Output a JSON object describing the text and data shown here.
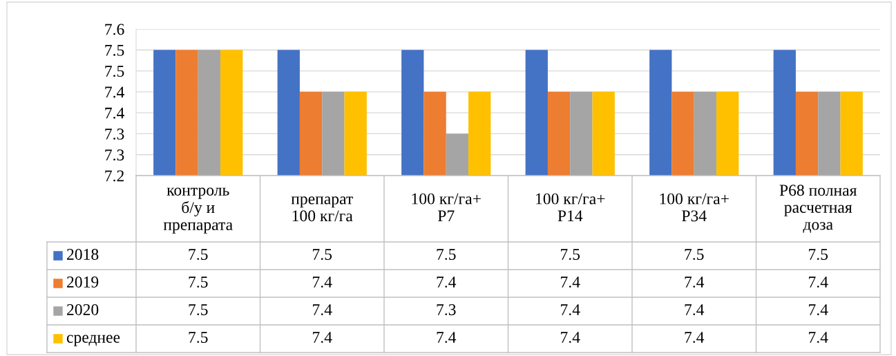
{
  "chart_data": {
    "type": "bar",
    "categories": [
      "контроль\nб/у и\nпрепарата",
      "препарат\n100 кг/га",
      "100 кг/га+\nР7",
      "100 кг/га+\nР14",
      "100 кг/га+\nР34",
      "Р68 полная\nрасчетная\nдоза"
    ],
    "series": [
      {
        "name": "2018",
        "color": "#4472c4",
        "values": [
          7.5,
          7.5,
          7.5,
          7.5,
          7.5,
          7.5
        ]
      },
      {
        "name": "2019",
        "color": "#ed7d31",
        "values": [
          7.5,
          7.4,
          7.4,
          7.4,
          7.4,
          7.4
        ]
      },
      {
        "name": "2020",
        "color": "#a5a5a5",
        "values": [
          7.5,
          7.4,
          7.3,
          7.4,
          7.4,
          7.4
        ]
      },
      {
        "name": "среднее",
        "color": "#ffc000",
        "values": [
          7.5,
          7.4,
          7.4,
          7.4,
          7.4,
          7.4
        ]
      }
    ],
    "ylim": [
      7.2,
      7.55
    ],
    "yticks": [
      7.2,
      {
        "value": 7.25,
        "label": "7.3"
      },
      7.3,
      {
        "value": 7.35,
        "label": "7.4"
      },
      7.4,
      {
        "value": 7.45,
        "label": "7.5"
      },
      7.5,
      {
        "value": 7.55,
        "label": "7.6"
      }
    ],
    "grid": "y",
    "legend": "bottom",
    "data_labels": true
  }
}
